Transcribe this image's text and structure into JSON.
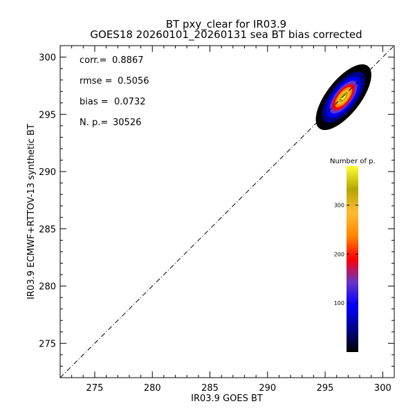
{
  "chart_data": {
    "type": "heatmap",
    "title": "BT pxy_clear for IR03.9",
    "subtitle": "GOES18 20260101_20260131 sea BT bias corrected",
    "xlabel": "IR03.9 GOES BT",
    "ylabel": "IR03.9 ECMWF+RTTOV-13 synthetic BT",
    "xlim": [
      272,
      301
    ],
    "ylim": [
      272,
      301
    ],
    "xticks": [
      275,
      280,
      285,
      290,
      295,
      300
    ],
    "yticks": [
      275,
      280,
      285,
      290,
      295,
      300
    ],
    "stats": [
      {
        "label": "corr.=",
        "value": "0.8867"
      },
      {
        "label": "rmse =",
        "value": "0.5056"
      },
      {
        "label": "bias =",
        "value": "0.0732"
      },
      {
        "label": "N. p.=",
        "value": "30526"
      }
    ],
    "reference_line": {
      "style": "dash-dot",
      "from": [
        272,
        272
      ],
      "to": [
        301,
        301
      ]
    },
    "density": {
      "center": [
        296.6,
        296.5
      ],
      "peak_count": 380,
      "extent_x": [
        293.3,
        298.6
      ],
      "extent_y": [
        292.8,
        298.8
      ]
    },
    "colorbar": {
      "title": "Number of p.",
      "range": [
        0,
        380
      ],
      "ticks": [
        100,
        200,
        300
      ],
      "colors": [
        "#000000",
        "#00008b",
        "#0000ff",
        "#6a33c7",
        "#ff0000",
        "#ff8800",
        "#ffbb33",
        "#b3a600",
        "#ffff33"
      ]
    },
    "grid": false
  }
}
